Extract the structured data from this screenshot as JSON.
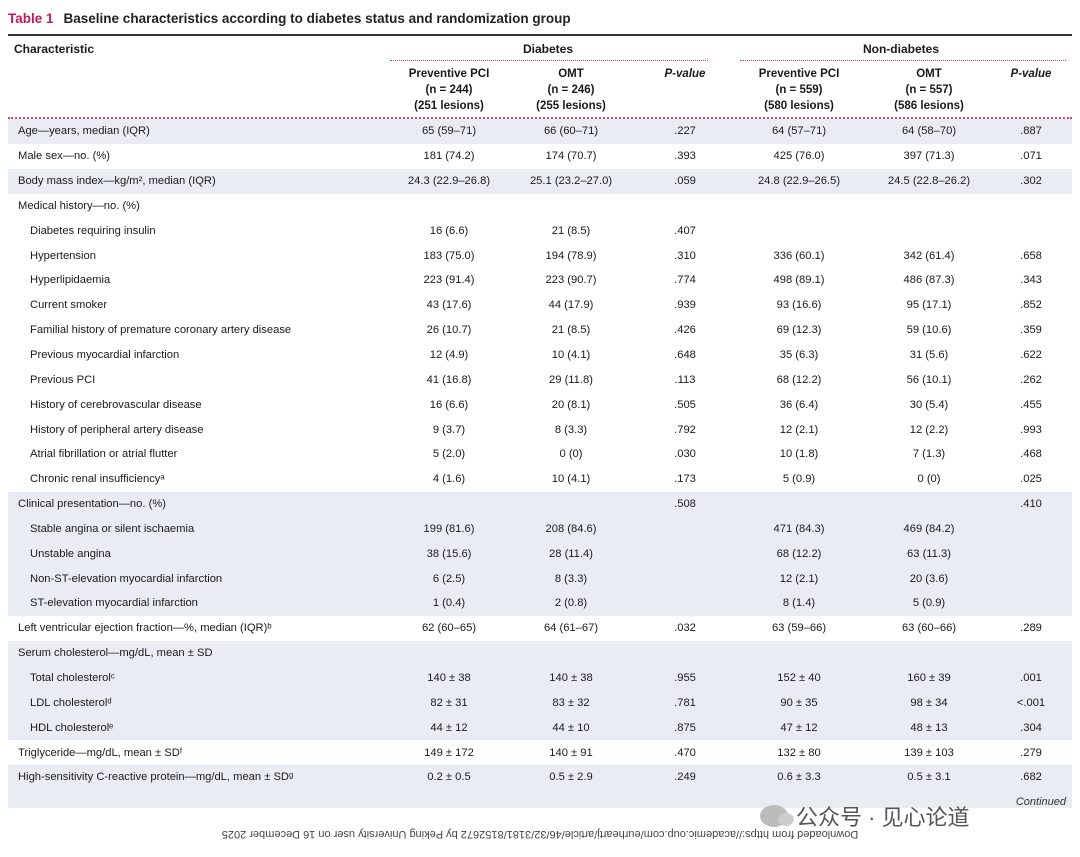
{
  "table": {
    "label": "Table 1",
    "title": "Baseline characteristics according to diabetes status and randomization group",
    "characteristic_header": "Characteristic",
    "group_diabetes": "Diabetes",
    "group_nondiabetes": "Non-diabetes",
    "subheaders": [
      {
        "l1": "Preventive PCI",
        "l2": "(n = 244)",
        "l3": "(251 lesions)"
      },
      {
        "l1": "OMT",
        "l2": "(n = 246)",
        "l3": "(255 lesions)"
      },
      {
        "l1": "P-value",
        "l2": "",
        "l3": ""
      },
      {
        "l1": "Preventive PCI",
        "l2": "(n = 559)",
        "l3": "(580 lesions)"
      },
      {
        "l1": "OMT",
        "l2": "(n = 557)",
        "l3": "(586 lesions)"
      },
      {
        "l1": "P-value",
        "l2": "",
        "l3": ""
      }
    ],
    "rows": [
      {
        "label": "Age—years, median (IQR)",
        "indent": false,
        "shade": true,
        "v": [
          "65 (59–71)",
          "66 (60–71)",
          ".227",
          "64 (57–71)",
          "64 (58–70)",
          ".887"
        ]
      },
      {
        "label": "Male sex—no. (%)",
        "indent": false,
        "shade": false,
        "v": [
          "181 (74.2)",
          "174 (70.7)",
          ".393",
          "425 (76.0)",
          "397 (71.3)",
          ".071"
        ]
      },
      {
        "label": "Body mass index—kg/m², median (IQR)",
        "indent": false,
        "shade": true,
        "v": [
          "24.3 (22.9–26.8)",
          "25.1 (23.2–27.0)",
          ".059",
          "24.8 (22.9–26.5)",
          "24.5 (22.8–26.2)",
          ".302"
        ]
      },
      {
        "label": "Medical history—no. (%)",
        "indent": false,
        "shade": false,
        "v": [
          "",
          "",
          "",
          "",
          "",
          ""
        ]
      },
      {
        "label": "Diabetes requiring insulin",
        "indent": true,
        "shade": false,
        "v": [
          "16 (6.6)",
          "21 (8.5)",
          ".407",
          "",
          "",
          ""
        ]
      },
      {
        "label": "Hypertension",
        "indent": true,
        "shade": false,
        "v": [
          "183 (75.0)",
          "194 (78.9)",
          ".310",
          "336 (60.1)",
          "342 (61.4)",
          ".658"
        ]
      },
      {
        "label": "Hyperlipidaemia",
        "indent": true,
        "shade": false,
        "v": [
          "223 (91.4)",
          "223 (90.7)",
          ".774",
          "498 (89.1)",
          "486 (87.3)",
          ".343"
        ]
      },
      {
        "label": "Current smoker",
        "indent": true,
        "shade": false,
        "v": [
          "43 (17.6)",
          "44 (17.9)",
          ".939",
          "93 (16.6)",
          "95 (17.1)",
          ".852"
        ]
      },
      {
        "label": "Familial history of premature coronary artery disease",
        "indent": true,
        "shade": false,
        "v": [
          "26 (10.7)",
          "21 (8.5)",
          ".426",
          "69 (12.3)",
          "59 (10.6)",
          ".359"
        ]
      },
      {
        "label": "Previous myocardial infarction",
        "indent": true,
        "shade": false,
        "v": [
          "12 (4.9)",
          "10 (4.1)",
          ".648",
          "35 (6.3)",
          "31 (5.6)",
          ".622"
        ]
      },
      {
        "label": "Previous PCI",
        "indent": true,
        "shade": false,
        "v": [
          "41 (16.8)",
          "29 (11.8)",
          ".113",
          "68 (12.2)",
          "56 (10.1)",
          ".262"
        ]
      },
      {
        "label": "History of cerebrovascular disease",
        "indent": true,
        "shade": false,
        "v": [
          "16 (6.6)",
          "20 (8.1)",
          ".505",
          "36 (6.4)",
          "30 (5.4)",
          ".455"
        ]
      },
      {
        "label": "History of peripheral artery disease",
        "indent": true,
        "shade": false,
        "v": [
          "9 (3.7)",
          "8 (3.3)",
          ".792",
          "12 (2.1)",
          "12 (2.2)",
          ".993"
        ]
      },
      {
        "label": "Atrial fibrillation or atrial flutter",
        "indent": true,
        "shade": false,
        "v": [
          "5 (2.0)",
          "0 (0)",
          ".030",
          "10 (1.8)",
          "7 (1.3)",
          ".468"
        ]
      },
      {
        "label": "Chronic renal insufficiencyᵃ",
        "indent": true,
        "shade": false,
        "v": [
          "4 (1.6)",
          "10 (4.1)",
          ".173",
          "5 (0.9)",
          "0 (0)",
          ".025"
        ]
      },
      {
        "label": "Clinical presentation—no. (%)",
        "indent": false,
        "shade": true,
        "v": [
          "",
          "",
          ".508",
          "",
          "",
          ".410"
        ]
      },
      {
        "label": "Stable angina or silent ischaemia",
        "indent": true,
        "shade": true,
        "v": [
          "199 (81.6)",
          "208 (84.6)",
          "",
          "471 (84.3)",
          "469 (84.2)",
          ""
        ]
      },
      {
        "label": "Unstable angina",
        "indent": true,
        "shade": true,
        "v": [
          "38 (15.6)",
          "28 (11.4)",
          "",
          "68 (12.2)",
          "63 (11.3)",
          ""
        ]
      },
      {
        "label": "Non-ST-elevation myocardial infarction",
        "indent": true,
        "shade": true,
        "v": [
          "6 (2.5)",
          "8 (3.3)",
          "",
          "12 (2.1)",
          "20 (3.6)",
          ""
        ]
      },
      {
        "label": "ST-elevation myocardial infarction",
        "indent": true,
        "shade": true,
        "v": [
          "1 (0.4)",
          "2 (0.8)",
          "",
          "8 (1.4)",
          "5 (0.9)",
          ""
        ]
      },
      {
        "label": "Left ventricular ejection fraction—%, median (IQR)ᵇ",
        "indent": false,
        "shade": false,
        "v": [
          "62 (60–65)",
          "64 (61–67)",
          ".032",
          "63 (59–66)",
          "63 (60–66)",
          ".289"
        ]
      },
      {
        "label": "Serum cholesterol—mg/dL, mean ± SD",
        "indent": false,
        "shade": true,
        "v": [
          "",
          "",
          "",
          "",
          "",
          ""
        ]
      },
      {
        "label": "Total cholesterolᶜ",
        "indent": true,
        "shade": true,
        "v": [
          "140 ± 38",
          "140 ± 38",
          ".955",
          "152 ± 40",
          "160 ± 39",
          ".001"
        ]
      },
      {
        "label": "LDL cholesterolᵈ",
        "indent": true,
        "shade": true,
        "v": [
          "82 ± 31",
          "83 ± 32",
          ".781",
          "90 ± 35",
          "98 ± 34",
          "<.001"
        ]
      },
      {
        "label": "HDL cholesterolᵉ",
        "indent": true,
        "shade": true,
        "v": [
          "44 ± 12",
          "44 ± 10",
          ".875",
          "47 ± 12",
          "48 ± 13",
          ".304"
        ]
      },
      {
        "label": "Triglyceride—mg/dL, mean ± SDᶠ",
        "indent": false,
        "shade": false,
        "v": [
          "149 ± 172",
          "140 ± 91",
          ".470",
          "132 ± 80",
          "139 ± 103",
          ".279"
        ]
      },
      {
        "label": "High-sensitivity C-reactive protein—mg/dL, mean ± SDᵍ",
        "indent": false,
        "shade": true,
        "v": [
          "0.2 ± 0.5",
          "0.5 ± 2.9",
          ".249",
          "0.6 ± 3.3",
          "0.5 ± 3.1",
          ".682"
        ]
      }
    ],
    "continued": "Continued"
  },
  "watermark": "公众号 · 见心论道",
  "download_notice": "Downloaded from https://academic.oup.com/eurheartj/article/46/32/3181/8152672 by Peking University user on 16 December 2025"
}
